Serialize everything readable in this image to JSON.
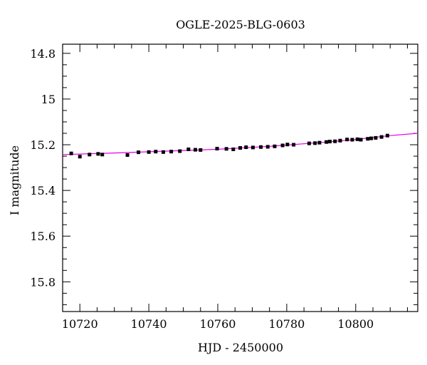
{
  "chart_data": {
    "type": "scatter",
    "title": "OGLE-2025-BLG-0603",
    "xlabel": "HJD - 2450000",
    "ylabel": "I magnitude",
    "xlim": [
      10715,
      10818
    ],
    "ylim": [
      15.93,
      14.76
    ],
    "y_inverted": true,
    "grid": false,
    "x_major_ticks": [
      10720,
      10740,
      10760,
      10780,
      10800
    ],
    "x_minor_step": 5,
    "y_major_ticks": [
      14.8,
      15,
      15.2,
      15.4,
      15.6,
      15.8
    ],
    "y_tick_labels": [
      "14.8",
      "15",
      "15.2",
      "15.4",
      "15.6",
      "15.8"
    ],
    "y_minor_step": 0.05,
    "series": [
      {
        "kind": "points",
        "color": "#000000",
        "x": [
          10717.5,
          10720.0,
          10722.8,
          10725.3,
          10726.5,
          10733.8,
          10737.0,
          10740.0,
          10742.0,
          10744.2,
          10746.5,
          10749.0,
          10751.5,
          10753.5,
          10755.0,
          10759.8,
          10762.5,
          10764.5,
          10766.5,
          10768.2,
          10770.2,
          10772.5,
          10774.5,
          10776.5,
          10778.8,
          10780.2,
          10782.0,
          10786.5,
          10788.2,
          10789.5,
          10791.5,
          10792.5,
          10794.0,
          10795.5,
          10797.5,
          10799.0,
          10800.5,
          10801.5,
          10803.5,
          10804.5,
          10805.8,
          10807.5,
          10809.2
        ],
        "y": [
          15.238,
          15.252,
          15.243,
          15.24,
          15.243,
          15.245,
          15.233,
          15.232,
          15.23,
          15.232,
          15.23,
          15.228,
          15.22,
          15.222,
          15.223,
          15.217,
          15.218,
          15.22,
          15.214,
          15.211,
          15.212,
          15.21,
          15.209,
          15.207,
          15.203,
          15.199,
          15.2,
          15.194,
          15.193,
          15.191,
          15.188,
          15.186,
          15.185,
          15.182,
          15.177,
          15.178,
          15.176,
          15.178,
          15.174,
          15.172,
          15.17,
          15.166,
          15.16
        ]
      },
      {
        "kind": "model",
        "color": "#e600e6",
        "x": [
          10715,
          10730,
          10745,
          10760,
          10775,
          10790,
          10800,
          10810,
          10818
        ],
        "y": [
          15.243,
          15.236,
          15.228,
          15.22,
          15.207,
          15.19,
          15.177,
          15.16,
          15.15
        ]
      }
    ]
  }
}
